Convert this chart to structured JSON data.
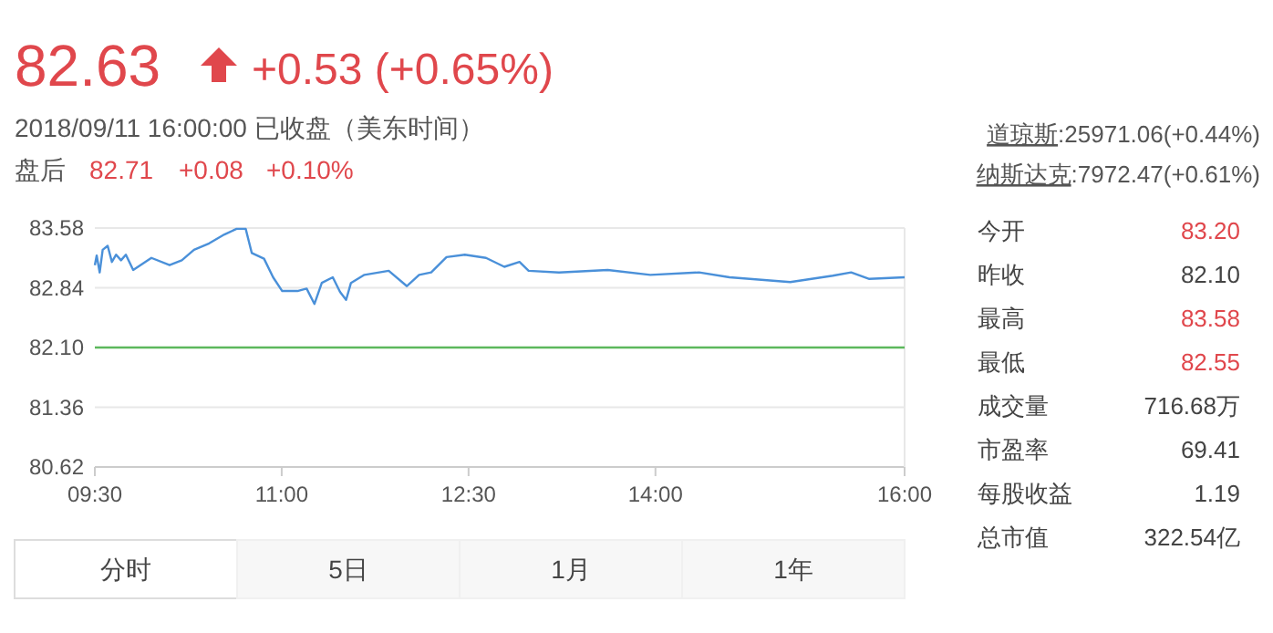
{
  "chart_data": {
    "type": "line",
    "title": "82.63",
    "subtitle": "+0.53 (+0.65%)",
    "annotations": [
      "2018/09/11 16:00:00 已收盘（美东时间）",
      "盘后",
      "82.71",
      "+0.08",
      "+0.10%",
      "道琼斯",
      ":25971.06(+0.44%)",
      "纳斯达克",
      ":7972.47(+0.61%)",
      "今开",
      "83.20",
      "昨收",
      "82.10",
      "最高",
      "83.58",
      "最低",
      "82.55",
      "成交量",
      "716.68万",
      "市盈率",
      "69.41",
      "每股收益",
      "1.19",
      "总市值",
      "322.54亿",
      "分时",
      "5日",
      "1月",
      "1年"
    ],
    "x": [
      9.5,
      9.515,
      9.539,
      9.563,
      9.603,
      9.637,
      9.671,
      9.71,
      9.749,
      9.808,
      9.954,
      10.1,
      10.198,
      10.296,
      10.418,
      10.54,
      10.638,
      10.711,
      10.76,
      10.858,
      10.931,
      11.004,
      11.126,
      11.2,
      11.263,
      11.322,
      11.41,
      11.468,
      11.517,
      11.556,
      11.664,
      11.859,
      12.005,
      12.103,
      12.2,
      12.323,
      12.47,
      12.64,
      12.787,
      12.909,
      12.982,
      13.226,
      13.617,
      13.959,
      14.35,
      14.594,
      15.082,
      15.424,
      15.571,
      15.717,
      16.0
    ],
    "series": [
      {
        "color": "#4a90d9",
        "values": [
          83.12,
          83.24,
          83.03,
          83.31,
          83.36,
          83.16,
          83.25,
          83.18,
          83.25,
          83.06,
          83.21,
          83.12,
          83.18,
          83.31,
          83.39,
          83.5,
          83.57,
          83.57,
          83.27,
          83.2,
          82.97,
          82.8,
          82.8,
          82.83,
          82.64,
          82.9,
          82.97,
          82.79,
          82.69,
          82.9,
          83.0,
          83.05,
          82.86,
          83.0,
          83.03,
          83.22,
          83.25,
          83.21,
          83.1,
          83.16,
          83.05,
          83.03,
          83.06,
          83.0,
          83.03,
          82.97,
          82.91,
          82.99,
          83.03,
          82.95,
          82.97
        ]
      }
    ],
    "xlim": [
      9.5,
      16
    ],
    "xticks": [
      {
        "value": 9.5,
        "label": "09:30"
      },
      {
        "value": 11,
        "label": "11:00"
      },
      {
        "value": 12.5,
        "label": "12:30"
      },
      {
        "value": 14,
        "label": "14:00"
      },
      {
        "value": 16,
        "label": "16:00"
      }
    ],
    "ylim": [
      80.62,
      83.58
    ],
    "yticks": [
      {
        "value": 80.62,
        "label": "80.62"
      },
      {
        "value": 81.36,
        "label": "81.36"
      },
      {
        "value": 82.1,
        "label": "82.10"
      },
      {
        "value": 82.84,
        "label": "82.84"
      },
      {
        "value": 83.58,
        "label": "83.58"
      }
    ],
    "ref_lines": [
      {
        "axis": "y",
        "value": 82.1,
        "color": "#5cb85c"
      }
    ],
    "grid": "y",
    "marker": "none",
    "line_style": "solid"
  }
}
